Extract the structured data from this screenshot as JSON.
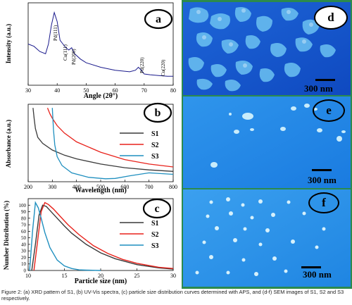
{
  "panels": {
    "a": {
      "badge": "a",
      "ylabel": "Intensity (a.u.)",
      "xlabel": "Angle (2θ°)",
      "peaks": [
        "Pd(111)",
        "Cu(111)",
        "Pd(200)",
        "Pd(220)",
        "Cu(220)"
      ]
    },
    "b": {
      "badge": "b",
      "ylabel": "Absorbance (a.u.)",
      "xlabel": "Wavelength (nm)"
    },
    "c": {
      "badge": "c",
      "ylabel": "Number Distribution (%)",
      "xlabel": "Particle size (nm)"
    },
    "d": {
      "badge": "d",
      "scale": "300 nm"
    },
    "e": {
      "badge": "e",
      "scale": "300 nm"
    },
    "f": {
      "badge": "f",
      "scale": "300 nm"
    }
  },
  "legend": {
    "s1": "S1",
    "s2": "S2",
    "s3": "S3"
  },
  "colors": {
    "s1": "#3a3a3a",
    "s2": "#e8221b",
    "s3": "#1f8fbf",
    "xrd": "#1a1a8c",
    "frame": "#2c8a4d"
  },
  "caption": "Figure 2: (a) XRD pattern of S1, (b) UV-Vis spectra, (c) particle size distribution curves determined with APS, and (d-f) SEM images of S1, S2 and S3 respectively.",
  "chart_data": [
    {
      "type": "line",
      "xlabel": "Angle (2θ°)",
      "ylabel": "Intensity (a.u.)",
      "xlim": [
        30,
        80
      ],
      "xticks": [
        30,
        40,
        50,
        60,
        70,
        80
      ],
      "series": [
        {
          "x": [
            30,
            32,
            34,
            36,
            37,
            38,
            39,
            40,
            41,
            42,
            43,
            44,
            45,
            46,
            48,
            50,
            55,
            60,
            65,
            67,
            68,
            69,
            70,
            72,
            75,
            78,
            80
          ],
          "y": [
            0.55,
            0.52,
            0.45,
            0.42,
            0.55,
            0.8,
            0.97,
            0.85,
            0.6,
            0.55,
            0.5,
            0.47,
            0.5,
            0.42,
            0.35,
            0.3,
            0.24,
            0.2,
            0.18,
            0.2,
            0.24,
            0.2,
            0.15,
            0.14,
            0.13,
            0.12,
            0.12
          ]
        }
      ]
    },
    {
      "type": "line",
      "xlabel": "Wavelength (nm)",
      "ylabel": "Absorbance (a.u.)",
      "xlim": [
        200,
        800
      ],
      "xticks": [
        200,
        300,
        400,
        500,
        600,
        700,
        800
      ],
      "series": [
        {
          "name": "S1",
          "x": [
            220,
            225,
            230,
            240,
            260,
            300,
            350,
            400,
            500,
            600,
            700,
            800
          ],
          "y": [
            1.0,
            0.85,
            0.72,
            0.6,
            0.52,
            0.43,
            0.36,
            0.31,
            0.24,
            0.19,
            0.16,
            0.14
          ]
        },
        {
          "name": "S2",
          "x": [
            280,
            290,
            300,
            320,
            350,
            400,
            500,
            600,
            700,
            800
          ],
          "y": [
            1.0,
            0.92,
            0.86,
            0.76,
            0.66,
            0.54,
            0.4,
            0.3,
            0.24,
            0.2
          ]
        },
        {
          "name": "S3",
          "x": [
            300,
            305,
            310,
            320,
            340,
            380,
            450,
            520,
            560,
            620,
            700,
            800
          ],
          "y": [
            1.0,
            0.7,
            0.5,
            0.34,
            0.22,
            0.12,
            0.06,
            0.04,
            0.045,
            0.08,
            0.12,
            0.1
          ]
        }
      ]
    },
    {
      "type": "line",
      "xlabel": "Particle size (nm)",
      "ylabel": "Number Distribution (%)",
      "xlim": [
        10,
        30
      ],
      "ylim": [
        0,
        110
      ],
      "xticks": [
        10,
        15,
        20,
        25,
        30
      ],
      "yticks": [
        0,
        10,
        20,
        30,
        40,
        50,
        60,
        70,
        80,
        90,
        100
      ],
      "series": [
        {
          "name": "S1",
          "x": [
            10.5,
            11,
            11.5,
            12,
            12.5,
            13,
            14,
            15,
            16,
            18,
            20,
            22,
            25,
            28,
            30
          ],
          "y": [
            0,
            40,
            85,
            100,
            98,
            92,
            80,
            68,
            57,
            40,
            27,
            18,
            9,
            4,
            2
          ]
        },
        {
          "name": "S2",
          "x": [
            10.8,
            11.3,
            11.8,
            12.3,
            12.8,
            13.5,
            14.5,
            15.5,
            17,
            19,
            21,
            23,
            25,
            28,
            30
          ],
          "y": [
            0,
            45,
            90,
            104,
            101,
            94,
            82,
            70,
            55,
            38,
            26,
            17,
            11,
            5,
            3
          ]
        },
        {
          "name": "S3",
          "x": [
            10.2,
            10.6,
            11,
            11.4,
            11.8,
            12.3,
            13,
            14,
            15,
            16,
            17,
            18,
            20
          ],
          "y": [
            0,
            60,
            104,
            96,
            80,
            58,
            35,
            16,
            7,
            3,
            1,
            0.5,
            0
          ]
        }
      ]
    }
  ]
}
